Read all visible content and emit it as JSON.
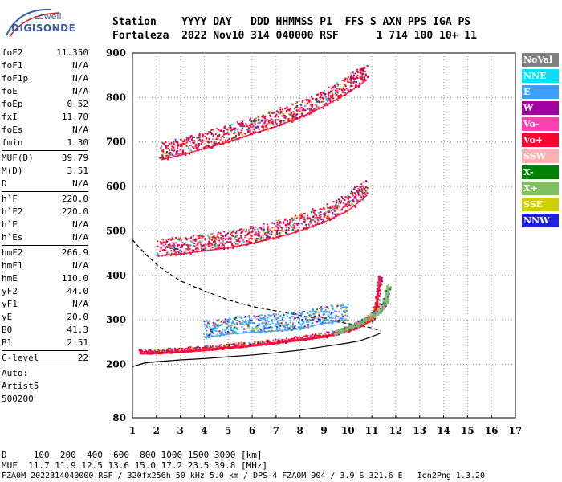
{
  "logo": {
    "line1": "Lowell",
    "line2": "DIGISONDE"
  },
  "header": {
    "line1": "Station    YYYY DAY   DDD HHMMSS P1  FFS S AXN PPS IGA PS",
    "line2": "Fortaleza  2022 Nov10 314 040000 RSF      1 714 100 10+ 11"
  },
  "params": [
    {
      "name": "foF2",
      "value": "11.350"
    },
    {
      "name": "foF1",
      "value": "N/A"
    },
    {
      "name": "foF1p",
      "value": "N/A"
    },
    {
      "name": "foE",
      "value": "N/A"
    },
    {
      "name": "foEp",
      "value": "0.52"
    },
    {
      "name": "fxI",
      "value": "11.70"
    },
    {
      "name": "foEs",
      "value": "N/A"
    },
    {
      "name": "fmin",
      "value": "1.30"
    },
    {
      "sep": true
    },
    {
      "name": "MUF(D)",
      "value": "39.79"
    },
    {
      "name": "M(D)",
      "value": "3.51"
    },
    {
      "name": "D",
      "value": "N/A"
    },
    {
      "sep": true
    },
    {
      "name": "h`F",
      "value": "220.0"
    },
    {
      "name": "h`F2",
      "value": "220.0"
    },
    {
      "name": "h`E",
      "value": "N/A"
    },
    {
      "name": "h`Es",
      "value": "N/A"
    },
    {
      "sep": true
    },
    {
      "name": "hmF2",
      "value": "266.9"
    },
    {
      "name": "hmF1",
      "value": "N/A"
    },
    {
      "name": "hmE",
      "value": "110.0"
    },
    {
      "name": "yF2",
      "value": "44.0"
    },
    {
      "name": "yF1",
      "value": "N/A"
    },
    {
      "name": "yE",
      "value": "20.0"
    },
    {
      "name": "B0",
      "value": "41.3"
    },
    {
      "name": "B1",
      "value": "2.51"
    },
    {
      "sep": true
    },
    {
      "name": "C-level",
      "value": "22"
    },
    {
      "sep": true
    },
    {
      "text": "Auto:"
    },
    {
      "text": "Artist5"
    },
    {
      "text": "500200"
    }
  ],
  "legend": [
    {
      "label": "NoVal",
      "color": "#808080"
    },
    {
      "label": "NNE",
      "color": "#00e0ff"
    },
    {
      "label": "E",
      "color": "#3aa0ff"
    },
    {
      "label": "W",
      "color": "#a000a0"
    },
    {
      "label": "Vo-",
      "color": "#ff40b0"
    },
    {
      "label": "Vo+",
      "color": "#ff0030"
    },
    {
      "label": "SSW",
      "color": "#ffb0b0"
    },
    {
      "label": "X-",
      "color": "#008000"
    },
    {
      "label": "X+",
      "color": "#80c060"
    },
    {
      "label": "SSE",
      "color": "#d0d000"
    },
    {
      "label": "NNW",
      "color": "#2020e0"
    }
  ],
  "footer": {
    "line1": "D     100  200  400  600  800 1000 1500 3000 [km]",
    "line2": "MUF  11.7 11.9 12.5 13.6 15.0 17.2 23.5 39.8 [MHz]",
    "line3": "FZA0M_2022314040000.RSF / 320fx256h 50 kHz 5.0 km / DPS-4 FZA0M 904 / 3.9 S 321.6 E   Ion2Png 1.3.20"
  },
  "chart_data": {
    "type": "scatter",
    "title": "",
    "xlabel": "",
    "ylabel": "",
    "xlim": [
      1,
      17
    ],
    "ylim": [
      80,
      900
    ],
    "x_ticks": [
      1,
      2,
      3,
      4,
      5,
      6,
      7,
      8,
      9,
      10,
      11,
      12,
      13,
      14,
      15,
      16,
      17
    ],
    "y_ticks": [
      80,
      200,
      300,
      400,
      500,
      600,
      700,
      800,
      900
    ],
    "grid": true,
    "legend_position": "right",
    "series": [
      {
        "name": "Vo+",
        "trace": "F-layer 1st hop",
        "x": [
          1.3,
          2,
          3,
          4,
          5,
          6,
          7,
          8,
          9,
          10,
          10.5,
          11,
          11.2,
          11.35
        ],
        "y": [
          225,
          225,
          228,
          232,
          237,
          242,
          248,
          255,
          262,
          275,
          285,
          300,
          330,
          400
        ]
      },
      {
        "name": "X+",
        "trace": "F-layer X-mode",
        "x": [
          9.5,
          10,
          10.5,
          11,
          11.4,
          11.6,
          11.7
        ],
        "y": [
          268,
          278,
          290,
          305,
          320,
          345,
          375
        ]
      },
      {
        "name": "Vo+",
        "trace": "F-layer 2nd hop",
        "x": [
          2.1,
          3,
          4,
          5,
          6,
          7,
          8,
          9,
          10,
          10.8
        ],
        "y": [
          445,
          448,
          455,
          462,
          472,
          485,
          500,
          520,
          545,
          580
        ]
      },
      {
        "name": "Vo+",
        "trace": "F-layer 3rd hop",
        "x": [
          2.2,
          3,
          4,
          5,
          6,
          7,
          8,
          9,
          10,
          10.8
        ],
        "y": [
          660,
          670,
          685,
          700,
          718,
          735,
          755,
          780,
          810,
          840
        ]
      },
      {
        "name": "E",
        "trace": "Oblique echoes",
        "x": [
          4,
          5,
          6,
          7,
          8,
          9,
          10
        ],
        "y": [
          260,
          268,
          272,
          275,
          280,
          292,
          300
        ]
      }
    ],
    "profile_curves": [
      {
        "name": "profile-solid",
        "x": [
          1,
          1.5,
          2,
          3,
          4,
          5,
          6,
          7,
          8,
          9,
          10,
          10.5,
          11,
          11.35
        ],
        "y": [
          195,
          203,
          206,
          210,
          213,
          217,
          221,
          226,
          232,
          240,
          248,
          253,
          262,
          270
        ]
      },
      {
        "name": "profile-dashed",
        "x": [
          1,
          1.5,
          2,
          2.5,
          3,
          4,
          5,
          6,
          7,
          8,
          9,
          10,
          10.5,
          11,
          11.35
        ],
        "y": [
          480,
          450,
          425,
          405,
          388,
          365,
          345,
          330,
          320,
          310,
          300,
          292,
          287,
          282,
          275
        ]
      }
    ]
  }
}
